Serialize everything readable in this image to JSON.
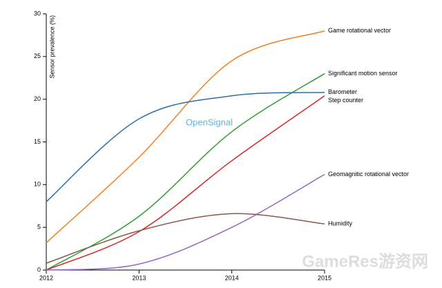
{
  "chart_data": {
    "type": "line",
    "y_label": "Sensor prevalence (%)",
    "annotation": "OpenSignal",
    "watermark": "GameRes游资网",
    "x": [
      2012,
      2013,
      2014,
      2015
    ],
    "xlim": [
      2012,
      2015
    ],
    "xticks": [
      2012,
      2013,
      2014,
      2015
    ],
    "ylim": [
      0,
      30
    ],
    "yticks": [
      0,
      5,
      10,
      15,
      20,
      25,
      30
    ],
    "series": [
      {
        "name": "Game rotational vector",
        "color": "#f47f20",
        "values": [
          3.2,
          13.2,
          24.5,
          28
        ]
      },
      {
        "name": "Significant motion sensor",
        "color": "#2ca02c",
        "values": [
          0,
          6.3,
          16.2,
          23
        ]
      },
      {
        "name": "Barometer",
        "color": "#2770a8",
        "values": [
          8,
          17.7,
          20.4,
          20.8
        ]
      },
      {
        "name": "Step counter",
        "color": "#d62728",
        "values": [
          0,
          4.5,
          12.8,
          20.4
        ]
      },
      {
        "name": "Geomagnitic rotational vector",
        "color": "#9467bd",
        "values": [
          0,
          0.7,
          5,
          11.2
        ]
      },
      {
        "name": "Humidity",
        "color": "#8c564b",
        "values": [
          0.8,
          4.6,
          6.6,
          5.4
        ]
      }
    ]
  }
}
